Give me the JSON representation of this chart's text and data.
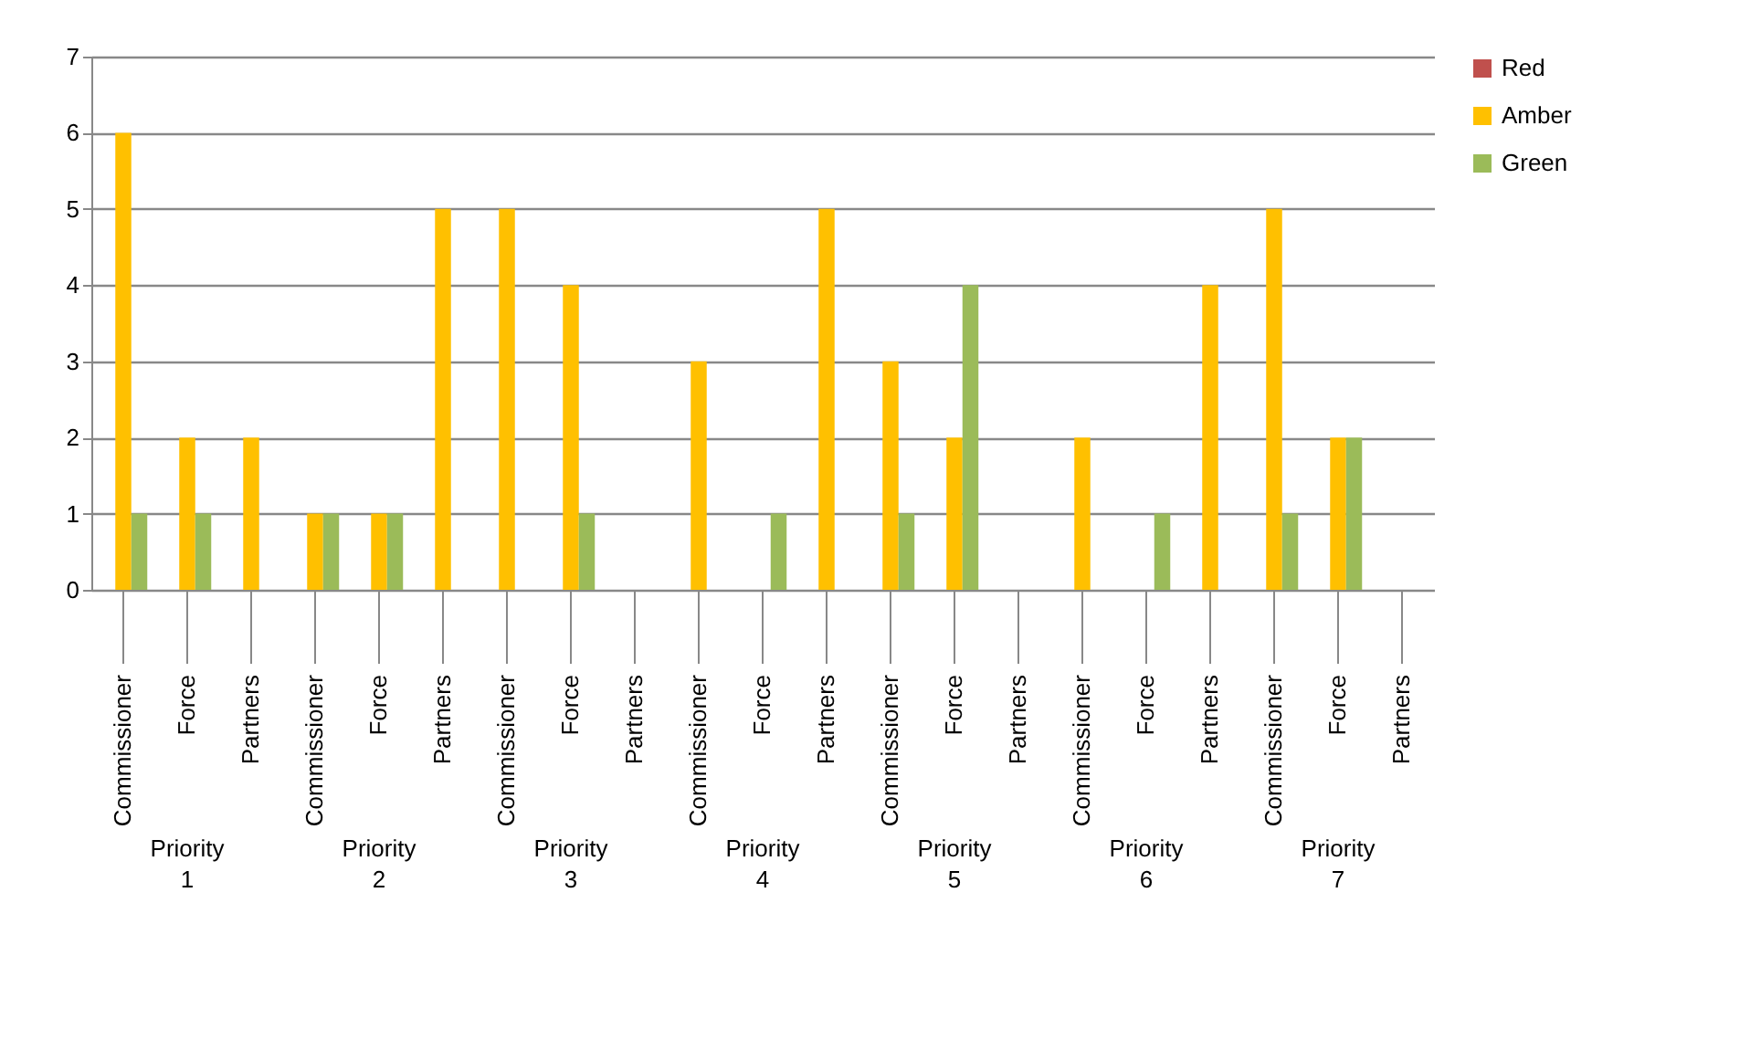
{
  "chart_data": {
    "type": "bar",
    "categories": [
      "Commissioner",
      "Force",
      "Partners",
      "Commissioner",
      "Force",
      "Partners",
      "Commissioner",
      "Force",
      "Partners",
      "Commissioner",
      "Force",
      "Partners",
      "Commissioner",
      "Force",
      "Partners",
      "Commissioner",
      "Force",
      "Partners",
      "Commissioner",
      "Force",
      "Partners"
    ],
    "series": [
      {
        "name": "Red",
        "color": "#c0504d",
        "values": [
          0,
          0,
          0,
          0,
          0,
          0,
          0,
          0,
          0,
          0,
          0,
          0,
          0,
          0,
          0,
          0,
          0,
          0,
          0,
          0,
          0
        ]
      },
      {
        "name": "Amber",
        "color": "#ffc000",
        "values": [
          6,
          2,
          2,
          1,
          1,
          5,
          5,
          4,
          0,
          3,
          0,
          5,
          3,
          2,
          0,
          2,
          0,
          4,
          5,
          2,
          0
        ]
      },
      {
        "name": "Green",
        "color": "#9bbb59",
        "values": [
          1,
          1,
          0,
          1,
          1,
          0,
          0,
          1,
          0,
          0,
          1,
          0,
          1,
          4,
          0,
          0,
          1,
          0,
          1,
          2,
          0
        ]
      }
    ],
    "annotations": [
      "Priority 1",
      "Priority 2",
      "Priority 3",
      "Priority 4",
      "Priority 5",
      "Priority 6",
      "Priority 7"
    ],
    "ylim": [
      0,
      7
    ],
    "yticks": [
      0,
      1,
      2,
      3,
      4,
      5,
      6,
      7
    ],
    "grid": "y",
    "legend": "right"
  }
}
